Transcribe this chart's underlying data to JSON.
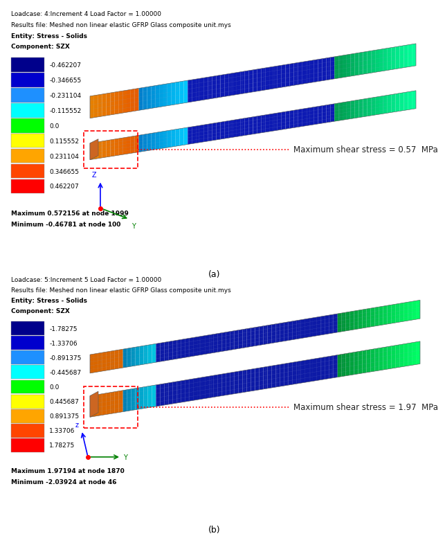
{
  "panel_a": {
    "header_lines": [
      "Loadcase: 4:Increment 4 Load Factor = 1.00000",
      "Results file: Meshed non linear elastic GFRP Glass composite unit.mys",
      "Entity: Stress - Solids",
      "Component: SZX"
    ],
    "legend_values": [
      "-0.462207",
      "-0.346655",
      "-0.231104",
      "-0.115552",
      "0.0",
      "0.115552",
      "0.231104",
      "0.346655",
      "0.462207"
    ],
    "max_text": "Maximum 0.572156 at node 1999",
    "min_text": "Minimum -0.46781 at node 100",
    "annotation": "Maximum shear stress = 0.57  MPa",
    "sub_label": "(a)"
  },
  "panel_b": {
    "header_lines": [
      "Loadcase: 5:Increment 5 Load Factor = 1.00000",
      "Results file: Meshed non linear elastic GFRP Glass composite unit.mys",
      "Entity: Stress - Solids",
      "Component: SZX"
    ],
    "legend_values": [
      "-1.78275",
      "-1.33706",
      "-0.891375",
      "-0.445687",
      "0.0",
      "0.445687",
      "0.891375",
      "1.33706",
      "1.78275"
    ],
    "max_text": "Maximum 1.97194 at node 1870",
    "min_text": "Minimum -2.03924 at node 46",
    "annotation": "Maximum shear stress = 1.97  MPa",
    "sub_label": "(b)"
  },
  "colorbar_colors": [
    "#00008B",
    "#0000CD",
    "#1E90FF",
    "#00FFFF",
    "#00FF00",
    "#FFFF00",
    "#FFA500",
    "#FF4500",
    "#FF0000"
  ],
  "bg_color": "#FFFFFF",
  "font_size_header": 6.5,
  "font_size_legend": 6.5,
  "font_size_annot": 8.5,
  "font_size_sublabel": 9
}
